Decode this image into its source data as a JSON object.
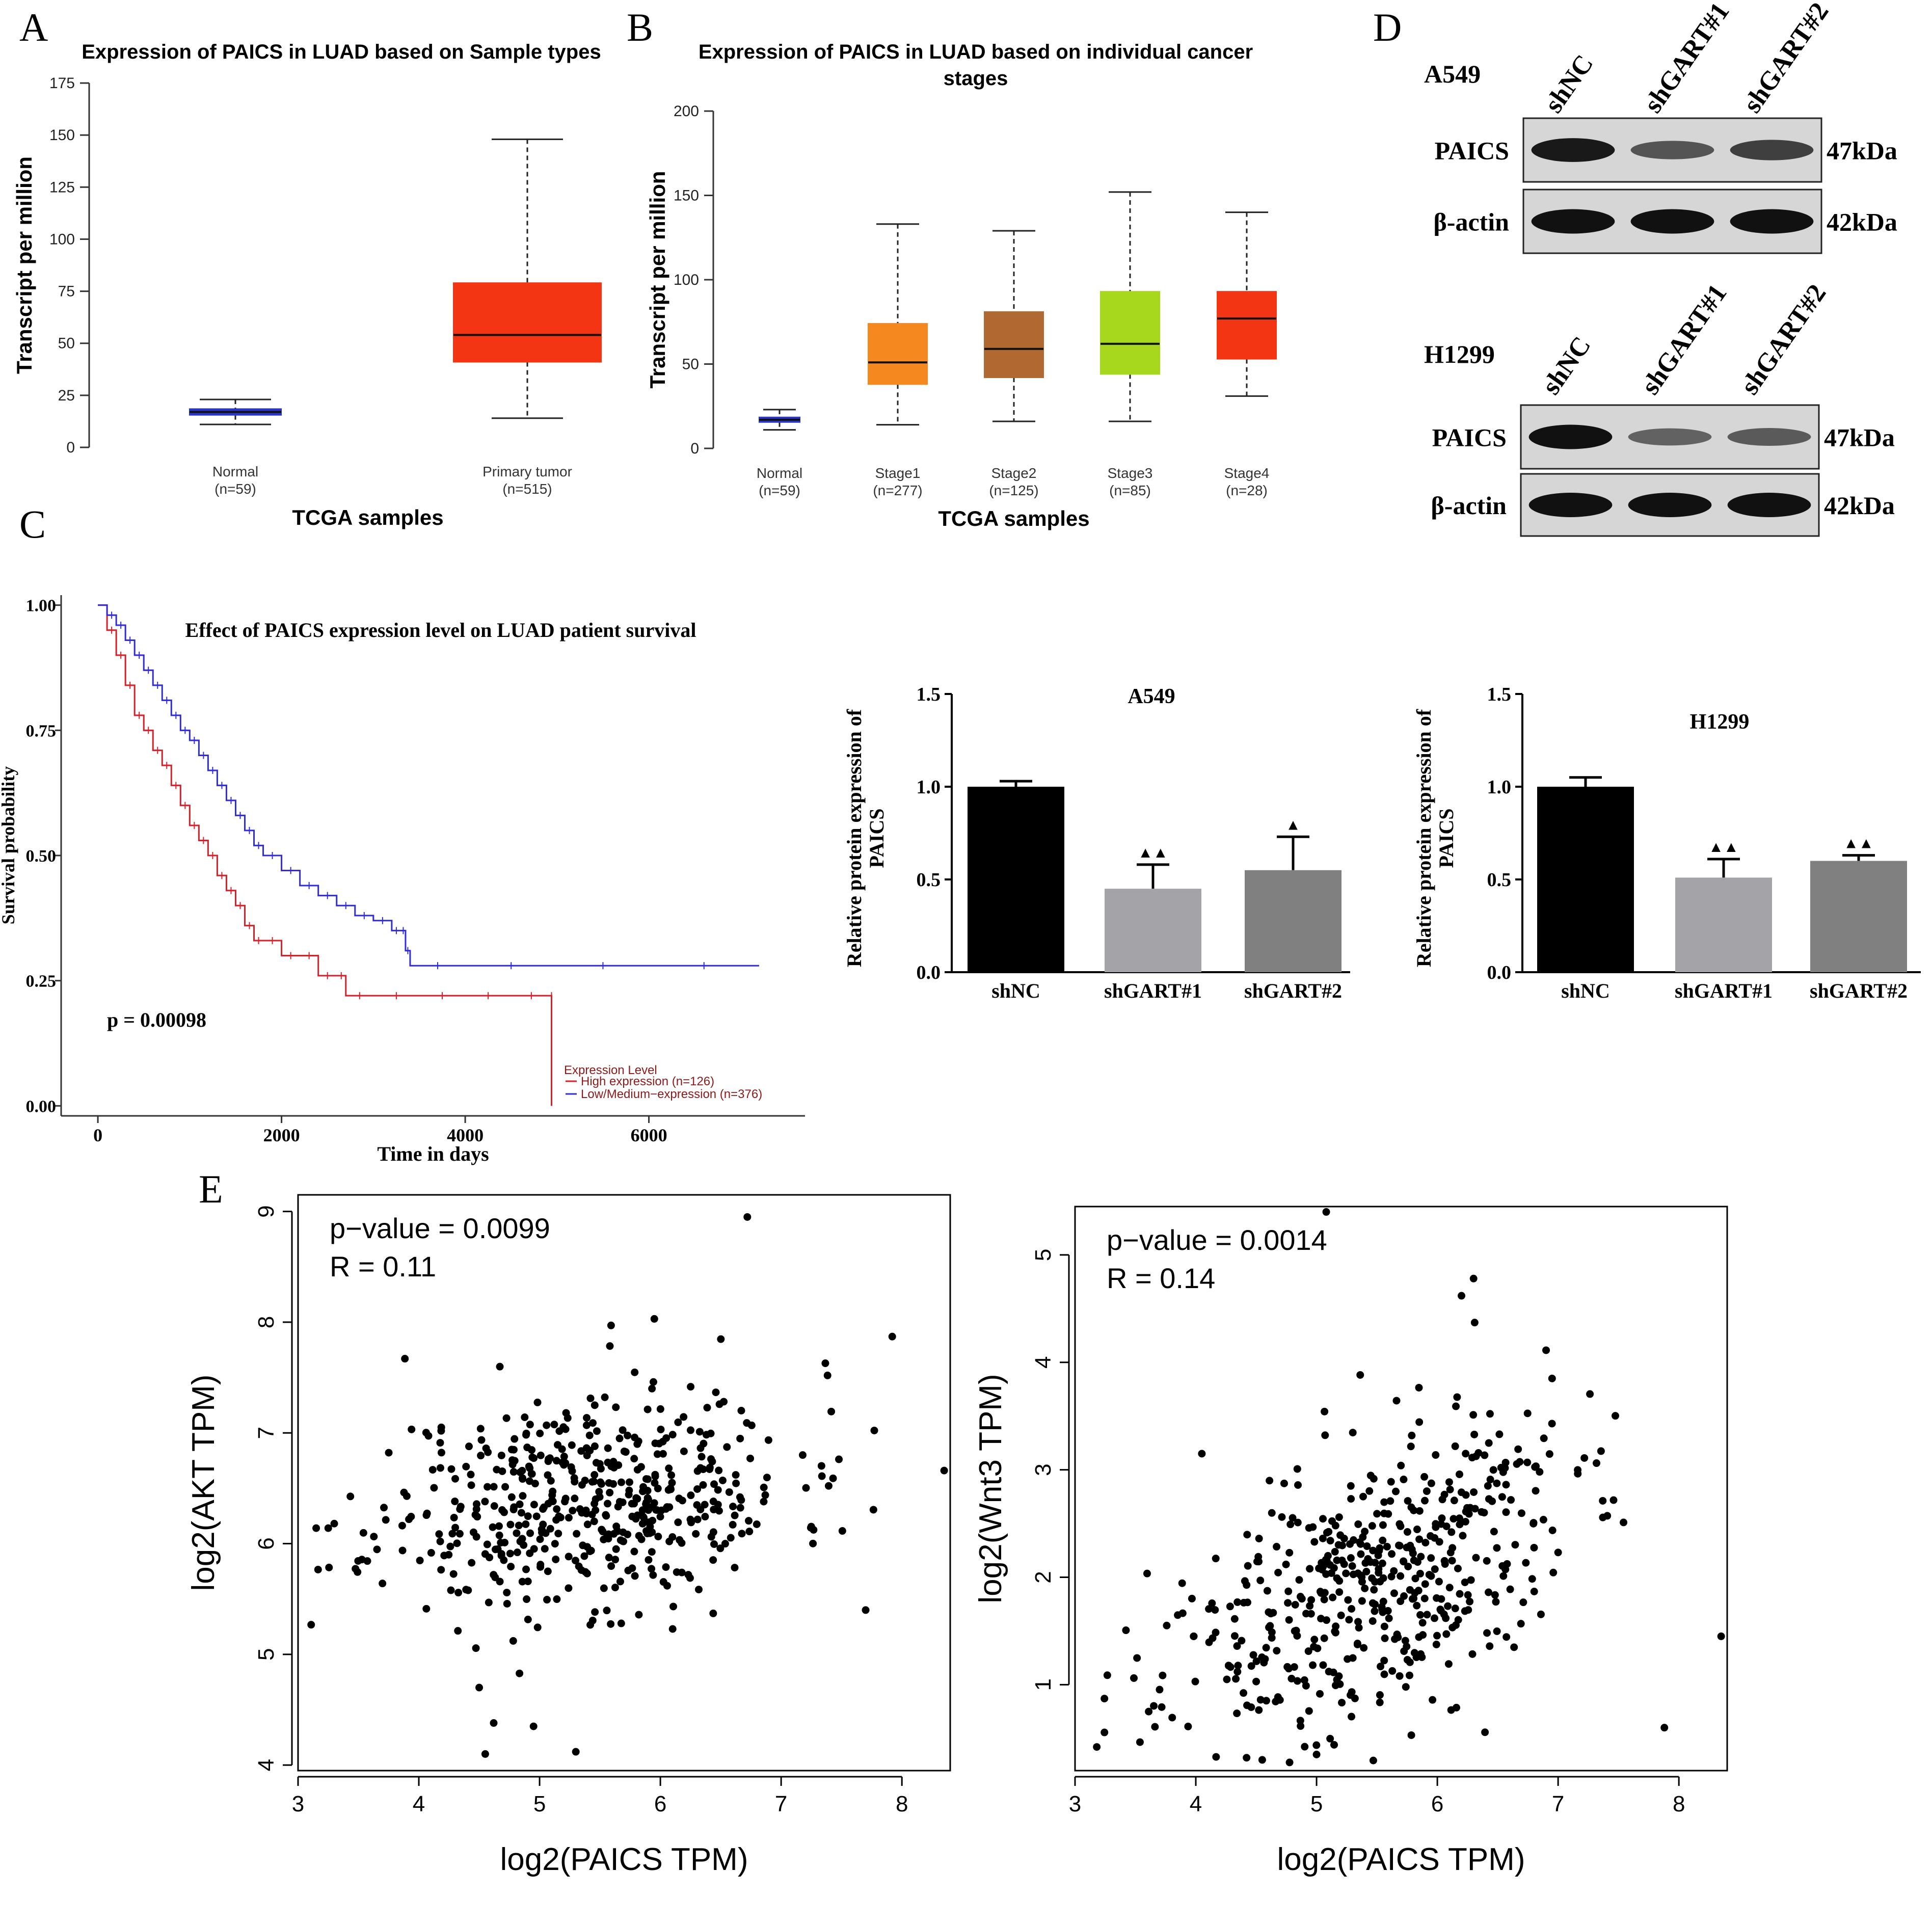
{
  "panels": {
    "A": "A",
    "B": "B",
    "C": "C",
    "D": "D",
    "E": "E"
  },
  "chart_data": [
    {
      "id": "A",
      "type": "box",
      "title": "Expression of PAICS in LUAD based on Sample types",
      "xlabel": "TCGA samples",
      "ylabel": "Transcript per million",
      "ylim": [
        0,
        175
      ],
      "yticks": [
        "0",
        "25",
        "50",
        "75",
        "100",
        "125",
        "150",
        "175"
      ],
      "groups": [
        {
          "name": "Normal",
          "n": "(n=59)",
          "min": 11,
          "q1": 15.5,
          "median": 17,
          "q3": 18.5,
          "max": 23,
          "color": "#2936c9"
        },
        {
          "name": "Primary tumor",
          "n": "(n=515)",
          "min": 14,
          "q1": 41,
          "median": 54,
          "q3": 79,
          "max": 148,
          "color": "#f43514"
        }
      ]
    },
    {
      "id": "B",
      "type": "box",
      "title_line1": "Expression of PAICS in LUAD based on individual cancer",
      "title_line2": "stages",
      "xlabel": "TCGA samples",
      "ylabel": "Transcript per million",
      "ylim": [
        0,
        200
      ],
      "yticks": [
        "0",
        "50",
        "100",
        "150",
        "200"
      ],
      "groups": [
        {
          "name": "Normal",
          "n": "(n=59)",
          "min": 11,
          "q1": 15.5,
          "median": 17,
          "q3": 18.5,
          "max": 23,
          "color": "#2936c9"
        },
        {
          "name": "Stage1",
          "n": "(n=277)",
          "min": 14,
          "q1": 38,
          "median": 51,
          "q3": 74,
          "max": 133,
          "color": "#f5881e"
        },
        {
          "name": "Stage2",
          "n": "(n=125)",
          "min": 16,
          "q1": 42,
          "median": 59,
          "q3": 81,
          "max": 129,
          "color": "#b06a31"
        },
        {
          "name": "Stage3",
          "n": "(n=85)",
          "min": 16,
          "q1": 44,
          "median": 62,
          "q3": 93,
          "max": 152,
          "color": "#a8d81b"
        },
        {
          "name": "Stage4",
          "n": "(n=28)",
          "min": 31,
          "q1": 53,
          "median": 77,
          "q3": 93,
          "max": 140,
          "color": "#f43514"
        }
      ]
    },
    {
      "id": "C",
      "type": "line",
      "title": "Effect of PAICS expression level on LUAD patient survival",
      "xlabel": "Time in days",
      "ylabel": "Survival probability",
      "xlim": [
        -400,
        7700
      ],
      "ylim": [
        -0.02,
        1.02
      ],
      "xticks": [
        "0",
        "2000",
        "4000",
        "6000"
      ],
      "yticks": [
        "0.00",
        "0.25",
        "0.50",
        "0.75",
        "1.00"
      ],
      "annotation": "p = 0.00098",
      "legend_title": "Expression Level",
      "series": [
        {
          "name": "High expression (n=126)",
          "color": "#d6202a",
          "x": [
            0,
            100,
            200,
            300,
            400,
            500,
            600,
            700,
            800,
            900,
            1000,
            1100,
            1200,
            1300,
            1400,
            1500,
            1600,
            1700,
            1800,
            2000,
            2200,
            2400,
            2600,
            2700,
            3000,
            3500,
            4000,
            4500,
            4940,
            4940
          ],
          "y": [
            1.0,
            0.95,
            0.9,
            0.84,
            0.78,
            0.75,
            0.71,
            0.68,
            0.64,
            0.6,
            0.56,
            0.53,
            0.5,
            0.46,
            0.43,
            0.4,
            0.36,
            0.33,
            0.33,
            0.3,
            0.3,
            0.26,
            0.26,
            0.22,
            0.22,
            0.22,
            0.22,
            0.22,
            0.22,
            0.0
          ]
        },
        {
          "name": "Low/Medium−expression (n=376)",
          "color": "#2f2cd8",
          "x": [
            0,
            100,
            200,
            300,
            400,
            500,
            600,
            700,
            800,
            900,
            1000,
            1100,
            1200,
            1300,
            1400,
            1500,
            1600,
            1700,
            1800,
            2000,
            2200,
            2400,
            2600,
            2800,
            3000,
            3200,
            3300,
            3350,
            3400,
            4000,
            5000,
            6000,
            7200
          ],
          "y": [
            1.0,
            0.98,
            0.96,
            0.93,
            0.9,
            0.87,
            0.84,
            0.81,
            0.78,
            0.75,
            0.73,
            0.7,
            0.67,
            0.64,
            0.61,
            0.58,
            0.55,
            0.52,
            0.5,
            0.47,
            0.44,
            0.42,
            0.4,
            0.38,
            0.37,
            0.35,
            0.35,
            0.31,
            0.28,
            0.28,
            0.28,
            0.28,
            0.28
          ]
        }
      ]
    },
    {
      "id": "D-A549",
      "type": "bar",
      "title": "A549",
      "ylabel_line1": "Relative protein expression of",
      "ylabel_line2": "PAICS",
      "categories": [
        "shNC",
        "shGART#1",
        "shGART#2"
      ],
      "values": [
        1.0,
        0.45,
        0.55
      ],
      "errors": [
        0.03,
        0.13,
        0.18
      ],
      "significance": [
        "",
        "▲▲",
        "▲"
      ],
      "colors": [
        "#000000",
        "#a4a4a8",
        "#808080"
      ],
      "ylim": [
        0,
        1.5
      ],
      "yticks": [
        "0.0",
        "0.5",
        "1.0",
        "1.5"
      ]
    },
    {
      "id": "D-H1299",
      "type": "bar",
      "title": "H1299",
      "ylabel_line1": "Relative protein expression of",
      "ylabel_line2": "PAICS",
      "categories": [
        "shNC",
        "shGART#1",
        "shGART#2"
      ],
      "values": [
        1.0,
        0.51,
        0.6
      ],
      "errors": [
        0.05,
        0.1,
        0.03
      ],
      "significance": [
        "",
        "▲▲",
        "▲▲"
      ],
      "colors": [
        "#000000",
        "#a4a4a8",
        "#808080"
      ],
      "ylim": [
        0,
        1.5
      ],
      "yticks": [
        "0.0",
        "0.5",
        "1.0",
        "1.5"
      ]
    },
    {
      "id": "E-AKT",
      "type": "scatter",
      "pvalue": "p−value = 0.0099",
      "r": "R = 0.11",
      "xlabel": "log2(PAICS TPM)",
      "ylabel": "log2(AKT TPM)",
      "xlim": [
        3.0,
        8.4
      ],
      "ylim": [
        3.95,
        9.15
      ],
      "xticks": [
        "3",
        "4",
        "5",
        "6",
        "7",
        "8"
      ],
      "yticks": [
        "4",
        "5",
        "6",
        "7",
        "8",
        "9"
      ],
      "x_center": 5.4,
      "y_center": 6.4,
      "n_points": 515,
      "seed": 11,
      "highlight_points": [
        [
          6.72,
          8.95
        ],
        [
          5.95,
          8.03
        ],
        [
          4.55,
          4.1
        ],
        [
          5.3,
          4.12
        ],
        [
          8.35,
          6.66
        ],
        [
          7.92,
          7.87
        ],
        [
          3.15,
          6.14
        ],
        [
          3.25,
          6.14
        ],
        [
          7.7,
          5.4
        ],
        [
          4.62,
          4.38
        ],
        [
          4.95,
          4.35
        ],
        [
          4.5,
          4.7
        ]
      ]
    },
    {
      "id": "E-Wnt3",
      "type": "scatter",
      "pvalue": "p−value = 0.0014",
      "r": "R = 0.14",
      "xlabel": "log2(PAICS TPM)",
      "ylabel": "log2(Wnt3 TPM)",
      "xlim": [
        3.0,
        8.4
      ],
      "ylim": [
        0.2,
        5.45
      ],
      "xticks": [
        "3",
        "4",
        "5",
        "6",
        "7",
        "8"
      ],
      "yticks": [
        "1",
        "2",
        "3",
        "4",
        "5"
      ],
      "x_center": 5.4,
      "y_center": 1.9,
      "n_points": 515,
      "seed": 23,
      "highlight_points": [
        [
          6.3,
          4.78
        ],
        [
          6.2,
          4.62
        ],
        [
          5.08,
          5.4
        ],
        [
          3.18,
          0.42
        ],
        [
          8.35,
          1.45
        ],
        [
          7.88,
          0.6
        ],
        [
          4.05,
          3.15
        ],
        [
          6.95,
          3.85
        ],
        [
          4.55,
          0.3
        ],
        [
          5.0,
          0.35
        ]
      ]
    }
  ],
  "western_blot": {
    "A549": {
      "cell_line": "A549",
      "lanes": [
        "shNC",
        "shGART#1",
        "shGART#2"
      ],
      "rows": [
        {
          "protein": "PAICS",
          "size": "47kDa",
          "intensity": [
            0.95,
            0.55,
            0.7
          ]
        },
        {
          "protein": "β-actin",
          "size": "42kDa",
          "intensity": [
            1.0,
            1.0,
            1.0
          ]
        }
      ]
    },
    "H1299": {
      "cell_line": "H1299",
      "lanes": [
        "shNC",
        "shGART#1",
        "shGART#2"
      ],
      "rows": [
        {
          "protein": "PAICS",
          "size": "47kDa",
          "intensity": [
            1.0,
            0.45,
            0.5
          ]
        },
        {
          "protein": "β-actin",
          "size": "42kDa",
          "intensity": [
            1.0,
            1.0,
            1.0
          ]
        }
      ]
    }
  }
}
